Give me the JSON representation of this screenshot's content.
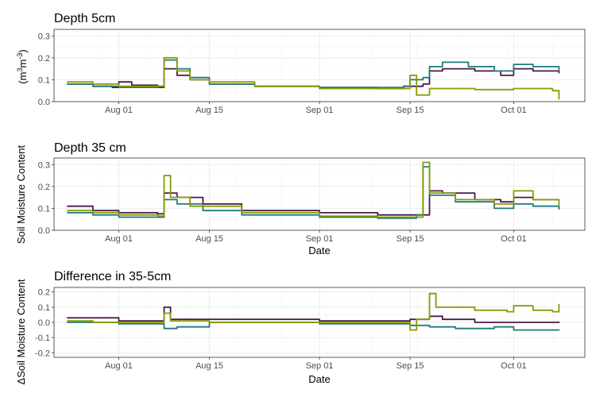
{
  "colors": {
    "series_purple": "#4a1a4a",
    "series_teal": "#1f7a7a",
    "series_olive": "#8a9a00"
  },
  "shared_labels": {
    "y_axis_title": "Soil Moisture Content",
    "y_axis_title_delta": "ΔSoil Moisture Content",
    "units_prefix": "(m",
    "units_exp1": "3",
    "units_mid": "m",
    "units_exp2": "-3",
    "units_suffix": ")"
  },
  "chart_data": [
    {
      "type": "line",
      "title": "Depth 5cm",
      "xlabel": "",
      "ylabel": "(m3m-3)",
      "xlim": [
        "2023-07-22",
        "2023-10-12"
      ],
      "ylim": [
        0,
        0.33
      ],
      "x_ticks": [
        {
          "date": "2023-08-01",
          "label": "Aug 01"
        },
        {
          "date": "2023-08-15",
          "label": "Aug 15"
        },
        {
          "date": "2023-09-01",
          "label": "Sep 01"
        },
        {
          "date": "2023-09-15",
          "label": "Sep 15"
        },
        {
          "date": "2023-10-01",
          "label": "Oct 01"
        }
      ],
      "y_ticks": [
        {
          "value": 0.0,
          "label": "0.0"
        },
        {
          "value": 0.1,
          "label": "0.1"
        },
        {
          "value": 0.2,
          "label": "0.2"
        },
        {
          "value": 0.3,
          "label": "0.3"
        }
      ],
      "series": [
        {
          "color": "#4a1a4a",
          "points": [
            [
              "2023-07-24",
              0.08
            ],
            [
              "2023-07-28",
              0.07
            ],
            [
              "2023-07-31",
              0.065
            ],
            [
              "2023-08-01",
              0.09
            ],
            [
              "2023-08-03",
              0.075
            ],
            [
              "2023-08-07",
              0.065
            ],
            [
              "2023-08-08",
              0.15
            ],
            [
              "2023-08-10",
              0.12
            ],
            [
              "2023-08-12",
              0.1
            ],
            [
              "2023-08-15",
              0.08
            ],
            [
              "2023-08-22",
              0.07
            ],
            [
              "2023-09-01",
              0.065
            ],
            [
              "2023-09-10",
              0.06
            ],
            [
              "2023-09-14",
              0.07
            ],
            [
              "2023-09-17",
              0.08
            ],
            [
              "2023-09-18",
              0.14
            ],
            [
              "2023-09-20",
              0.15
            ],
            [
              "2023-09-25",
              0.14
            ],
            [
              "2023-09-29",
              0.12
            ],
            [
              "2023-10-01",
              0.15
            ],
            [
              "2023-10-04",
              0.14
            ],
            [
              "2023-10-08",
              0.13
            ]
          ]
        },
        {
          "color": "#1f7a7a",
          "points": [
            [
              "2023-07-24",
              0.08
            ],
            [
              "2023-07-28",
              0.07
            ],
            [
              "2023-08-01",
              0.065
            ],
            [
              "2023-08-07",
              0.07
            ],
            [
              "2023-08-08",
              0.19
            ],
            [
              "2023-08-10",
              0.15
            ],
            [
              "2023-08-12",
              0.11
            ],
            [
              "2023-08-15",
              0.08
            ],
            [
              "2023-08-22",
              0.07
            ],
            [
              "2023-09-01",
              0.065
            ],
            [
              "2023-09-10",
              0.065
            ],
            [
              "2023-09-14",
              0.07
            ],
            [
              "2023-09-15",
              0.1
            ],
            [
              "2023-09-17",
              0.11
            ],
            [
              "2023-09-18",
              0.16
            ],
            [
              "2023-09-20",
              0.18
            ],
            [
              "2023-09-24",
              0.16
            ],
            [
              "2023-09-28",
              0.14
            ],
            [
              "2023-09-30",
              0.14
            ],
            [
              "2023-10-01",
              0.17
            ],
            [
              "2023-10-04",
              0.16
            ],
            [
              "2023-10-08",
              0.14
            ]
          ]
        },
        {
          "color": "#8a9a00",
          "points": [
            [
              "2023-07-24",
              0.09
            ],
            [
              "2023-07-28",
              0.08
            ],
            [
              "2023-08-01",
              0.07
            ],
            [
              "2023-08-07",
              0.07
            ],
            [
              "2023-08-08",
              0.2
            ],
            [
              "2023-08-10",
              0.14
            ],
            [
              "2023-08-12",
              0.1
            ],
            [
              "2023-08-15",
              0.09
            ],
            [
              "2023-08-22",
              0.07
            ],
            [
              "2023-09-01",
              0.06
            ],
            [
              "2023-09-10",
              0.06
            ],
            [
              "2023-09-14",
              0.06
            ],
            [
              "2023-09-15",
              0.12
            ],
            [
              "2023-09-16",
              0.03
            ],
            [
              "2023-09-18",
              0.06
            ],
            [
              "2023-09-25",
              0.055
            ],
            [
              "2023-10-01",
              0.06
            ],
            [
              "2023-10-07",
              0.05
            ],
            [
              "2023-10-08",
              0.01
            ]
          ]
        }
      ]
    },
    {
      "type": "line",
      "title": "Depth 35 cm",
      "xlabel": "Date",
      "ylabel": "Soil Moisture Content",
      "xlim": [
        "2023-07-22",
        "2023-10-12"
      ],
      "ylim": [
        0,
        0.33
      ],
      "x_ticks": [
        {
          "date": "2023-08-01",
          "label": "Aug 01"
        },
        {
          "date": "2023-08-15",
          "label": "Aug 15"
        },
        {
          "date": "2023-09-01",
          "label": "Sep 01"
        },
        {
          "date": "2023-09-15",
          "label": "Sep 15"
        },
        {
          "date": "2023-10-01",
          "label": "Oct 01"
        }
      ],
      "y_ticks": [
        {
          "value": 0.0,
          "label": "0.0"
        },
        {
          "value": 0.1,
          "label": "0.1"
        },
        {
          "value": 0.2,
          "label": "0.2"
        },
        {
          "value": 0.3,
          "label": "0.3"
        }
      ],
      "series": [
        {
          "color": "#4a1a4a",
          "points": [
            [
              "2023-07-24",
              0.11
            ],
            [
              "2023-07-28",
              0.09
            ],
            [
              "2023-08-01",
              0.08
            ],
            [
              "2023-08-07",
              0.075
            ],
            [
              "2023-08-08",
              0.17
            ],
            [
              "2023-08-10",
              0.15
            ],
            [
              "2023-08-14",
              0.12
            ],
            [
              "2023-08-20",
              0.09
            ],
            [
              "2023-09-01",
              0.08
            ],
            [
              "2023-09-10",
              0.07
            ],
            [
              "2023-09-14",
              0.07
            ],
            [
              "2023-09-16",
              0.07
            ],
            [
              "2023-09-18",
              0.18
            ],
            [
              "2023-09-20",
              0.17
            ],
            [
              "2023-09-25",
              0.14
            ],
            [
              "2023-09-29",
              0.13
            ],
            [
              "2023-10-01",
              0.15
            ],
            [
              "2023-10-04",
              0.14
            ],
            [
              "2023-10-08",
              0.14
            ]
          ]
        },
        {
          "color": "#1f7a7a",
          "points": [
            [
              "2023-07-24",
              0.08
            ],
            [
              "2023-07-28",
              0.07
            ],
            [
              "2023-08-01",
              0.06
            ],
            [
              "2023-08-07",
              0.06
            ],
            [
              "2023-08-08",
              0.14
            ],
            [
              "2023-08-10",
              0.12
            ],
            [
              "2023-08-14",
              0.09
            ],
            [
              "2023-08-20",
              0.07
            ],
            [
              "2023-09-01",
              0.06
            ],
            [
              "2023-09-10",
              0.055
            ],
            [
              "2023-09-14",
              0.055
            ],
            [
              "2023-09-16",
              0.07
            ],
            [
              "2023-09-17",
              0.29
            ],
            [
              "2023-09-18",
              0.16
            ],
            [
              "2023-09-22",
              0.13
            ],
            [
              "2023-09-28",
              0.1
            ],
            [
              "2023-10-01",
              0.12
            ],
            [
              "2023-10-04",
              0.11
            ],
            [
              "2023-10-08",
              0.095
            ]
          ]
        },
        {
          "color": "#8a9a00",
          "points": [
            [
              "2023-07-24",
              0.09
            ],
            [
              "2023-07-28",
              0.08
            ],
            [
              "2023-08-01",
              0.07
            ],
            [
              "2023-08-07",
              0.065
            ],
            [
              "2023-08-08",
              0.25
            ],
            [
              "2023-08-09",
              0.15
            ],
            [
              "2023-08-12",
              0.11
            ],
            [
              "2023-08-20",
              0.08
            ],
            [
              "2023-09-01",
              0.065
            ],
            [
              "2023-09-10",
              0.06
            ],
            [
              "2023-09-14",
              0.06
            ],
            [
              "2023-09-16",
              0.06
            ],
            [
              "2023-09-17",
              0.31
            ],
            [
              "2023-09-18",
              0.17
            ],
            [
              "2023-09-22",
              0.14
            ],
            [
              "2023-09-28",
              0.12
            ],
            [
              "2023-10-01",
              0.18
            ],
            [
              "2023-10-04",
              0.14
            ],
            [
              "2023-10-08",
              0.11
            ]
          ]
        }
      ]
    },
    {
      "type": "line",
      "title": "Difference in 35-5cm",
      "xlabel": "Date",
      "ylabel": "ΔSoil Moisture Content",
      "xlim": [
        "2023-07-22",
        "2023-10-12"
      ],
      "ylim": [
        -0.23,
        0.23
      ],
      "x_ticks": [
        {
          "date": "2023-08-01",
          "label": "Aug 01"
        },
        {
          "date": "2023-08-15",
          "label": "Aug 15"
        },
        {
          "date": "2023-09-01",
          "label": "Sep 01"
        },
        {
          "date": "2023-09-15",
          "label": "Sep 15"
        },
        {
          "date": "2023-10-01",
          "label": "Oct 01"
        }
      ],
      "y_ticks": [
        {
          "value": -0.2,
          "label": "-0.2"
        },
        {
          "value": -0.1,
          "label": "-0.1"
        },
        {
          "value": 0.0,
          "label": "0.0"
        },
        {
          "value": 0.1,
          "label": "0.1"
        },
        {
          "value": 0.2,
          "label": "0.2"
        }
      ],
      "series": [
        {
          "color": "#4a1a4a",
          "points": [
            [
              "2023-07-24",
              0.03
            ],
            [
              "2023-07-28",
              0.03
            ],
            [
              "2023-08-01",
              0.01
            ],
            [
              "2023-08-07",
              0.01
            ],
            [
              "2023-08-08",
              0.1
            ],
            [
              "2023-08-09",
              0.02
            ],
            [
              "2023-08-15",
              0.02
            ],
            [
              "2023-09-01",
              0.01
            ],
            [
              "2023-09-14",
              0.01
            ],
            [
              "2023-09-15",
              0.02
            ],
            [
              "2023-09-17",
              0.02
            ],
            [
              "2023-09-18",
              0.04
            ],
            [
              "2023-09-20",
              0.02
            ],
            [
              "2023-09-25",
              0.0
            ],
            [
              "2023-09-29",
              0.0
            ],
            [
              "2023-10-01",
              0.0
            ],
            [
              "2023-10-04",
              0.0
            ],
            [
              "2023-10-08",
              0.005
            ]
          ]
        },
        {
          "color": "#1f7a7a",
          "points": [
            [
              "2023-07-24",
              0.0
            ],
            [
              "2023-07-28",
              0.0
            ],
            [
              "2023-08-01",
              -0.01
            ],
            [
              "2023-08-07",
              -0.01
            ],
            [
              "2023-08-08",
              -0.04
            ],
            [
              "2023-08-10",
              -0.03
            ],
            [
              "2023-08-15",
              0.0
            ],
            [
              "2023-09-01",
              -0.01
            ],
            [
              "2023-09-14",
              -0.01
            ],
            [
              "2023-09-15",
              -0.02
            ],
            [
              "2023-09-17",
              -0.02
            ],
            [
              "2023-09-18",
              -0.03
            ],
            [
              "2023-09-22",
              -0.04
            ],
            [
              "2023-09-28",
              -0.03
            ],
            [
              "2023-10-01",
              -0.05
            ],
            [
              "2023-10-04",
              -0.05
            ],
            [
              "2023-10-08",
              -0.045
            ]
          ]
        },
        {
          "color": "#8a9a00",
          "points": [
            [
              "2023-07-24",
              0.01
            ],
            [
              "2023-07-28",
              0.0
            ],
            [
              "2023-08-01",
              0.0
            ],
            [
              "2023-08-07",
              0.0
            ],
            [
              "2023-08-08",
              0.06
            ],
            [
              "2023-08-09",
              0.01
            ],
            [
              "2023-08-15",
              0.0
            ],
            [
              "2023-09-01",
              0.0
            ],
            [
              "2023-09-14",
              0.0
            ],
            [
              "2023-09-15",
              -0.05
            ],
            [
              "2023-09-16",
              0.02
            ],
            [
              "2023-09-17",
              0.02
            ],
            [
              "2023-09-18",
              0.19
            ],
            [
              "2023-09-19",
              0.1
            ],
            [
              "2023-09-25",
              0.08
            ],
            [
              "2023-09-30",
              0.07
            ],
            [
              "2023-10-01",
              0.11
            ],
            [
              "2023-10-04",
              0.08
            ],
            [
              "2023-10-07",
              0.07
            ],
            [
              "2023-10-08",
              0.12
            ]
          ]
        }
      ]
    }
  ]
}
